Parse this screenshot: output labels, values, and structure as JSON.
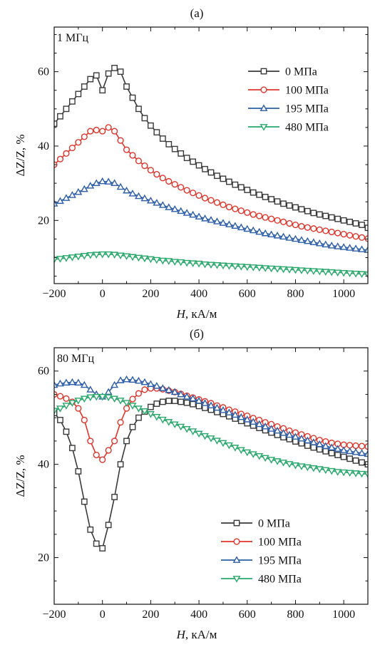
{
  "chart_data": [
    {
      "type": "line",
      "panel_label": "(a)",
      "annotation": "1 МГц",
      "xlabel_italic": "H",
      "xlabel_rest": ", кА/м",
      "ylabel": "ΔZ/Z, %",
      "xlim": [
        -200,
        1100
      ],
      "ylim": [
        3,
        72
      ],
      "xticks": [
        -200,
        0,
        200,
        400,
        600,
        800,
        1000
      ],
      "yticks": [
        20,
        40,
        60
      ],
      "legend_position": "top-right",
      "x_step": 25,
      "series": [
        {
          "name": "0 МПа",
          "color": "#3a3a3a",
          "marker": "square",
          "x": [
            -200,
            -175,
            -150,
            -125,
            -100,
            -75,
            -50,
            -25,
            0,
            25,
            50,
            75,
            100,
            125,
            150,
            175,
            200,
            225,
            250,
            275,
            300,
            325,
            350,
            375,
            400,
            425,
            450,
            475,
            500,
            525,
            550,
            575,
            600,
            625,
            650,
            675,
            700,
            725,
            750,
            775,
            800,
            825,
            850,
            875,
            900,
            925,
            950,
            975,
            1000,
            1025,
            1050,
            1075,
            1100
          ],
          "values": [
            46,
            48,
            50,
            52,
            54,
            56,
            58,
            59,
            55,
            59.5,
            61,
            60,
            56,
            53,
            50,
            47.5,
            45.5,
            43.7,
            42,
            40.5,
            39.2,
            38,
            36.8,
            35.8,
            34.8,
            33.8,
            32.9,
            32,
            31.2,
            30.4,
            29.6,
            28.9,
            28.2,
            27.5,
            26.9,
            26.3,
            25.7,
            25.1,
            24.5,
            24,
            23.5,
            23,
            22.5,
            22,
            21.6,
            21.2,
            20.8,
            20.4,
            20,
            19.6,
            19.2,
            18.8,
            18
          ]
        },
        {
          "name": "100 МПа",
          "color": "#e0342a",
          "marker": "circle",
          "x": [
            -200,
            -175,
            -150,
            -125,
            -100,
            -75,
            -50,
            -25,
            0,
            25,
            50,
            75,
            100,
            125,
            150,
            175,
            200,
            225,
            250,
            275,
            300,
            325,
            350,
            375,
            400,
            425,
            450,
            475,
            500,
            525,
            550,
            575,
            600,
            625,
            650,
            675,
            700,
            725,
            750,
            775,
            800,
            825,
            850,
            875,
            900,
            925,
            950,
            975,
            1000,
            1025,
            1050,
            1075,
            1100
          ],
          "values": [
            35,
            36.5,
            38,
            39.5,
            41,
            42.5,
            44,
            44.3,
            44,
            45,
            44,
            41.5,
            39,
            37.5,
            36,
            34.7,
            33.5,
            32.4,
            31.4,
            30.5,
            29.7,
            28.9,
            28.1,
            27.4,
            26.7,
            26,
            25.4,
            24.8,
            24.2,
            23.6,
            23.1,
            22.6,
            22.1,
            21.6,
            21.2,
            20.8,
            20.4,
            20,
            19.6,
            19.2,
            18.8,
            18.4,
            18.1,
            17.8,
            17.5,
            17.2,
            16.9,
            16.6,
            16.3,
            16,
            15.7,
            15.4,
            15.1
          ]
        },
        {
          "name": "195 МПа",
          "color": "#2d5fa8",
          "marker": "triangle-up",
          "x": [
            -200,
            -175,
            -150,
            -125,
            -100,
            -75,
            -50,
            -25,
            0,
            25,
            50,
            75,
            100,
            125,
            150,
            175,
            200,
            225,
            250,
            275,
            300,
            325,
            350,
            375,
            400,
            425,
            450,
            475,
            500,
            525,
            550,
            575,
            600,
            625,
            650,
            675,
            700,
            725,
            750,
            775,
            800,
            825,
            850,
            875,
            900,
            925,
            950,
            975,
            1000,
            1025,
            1050,
            1075,
            1100
          ],
          "values": [
            24.5,
            25.2,
            26,
            26.8,
            27.6,
            28.4,
            29.3,
            30,
            30.5,
            30.4,
            30,
            29,
            28,
            27.2,
            26.5,
            25.9,
            25.3,
            24.7,
            24.1,
            23.5,
            23,
            22.5,
            22,
            21.5,
            21,
            20.5,
            20.1,
            19.7,
            19.3,
            18.9,
            18.5,
            18.1,
            17.7,
            17.3,
            16.9,
            16.5,
            16.2,
            15.9,
            15.6,
            15.3,
            15,
            14.7,
            14.4,
            14.1,
            13.8,
            13.5,
            13.2,
            13,
            12.8,
            12.6,
            12.4,
            12.2,
            12
          ]
        },
        {
          "name": "480 МПа",
          "color": "#27a86a",
          "marker": "triangle-down",
          "x": [
            -200,
            -175,
            -150,
            -125,
            -100,
            -75,
            -50,
            -25,
            0,
            25,
            50,
            75,
            100,
            125,
            150,
            175,
            200,
            225,
            250,
            275,
            300,
            325,
            350,
            375,
            400,
            425,
            450,
            475,
            500,
            525,
            550,
            575,
            600,
            625,
            650,
            675,
            700,
            725,
            750,
            775,
            800,
            825,
            850,
            875,
            900,
            925,
            950,
            975,
            1000,
            1025,
            1050,
            1075,
            1100
          ],
          "values": [
            9.5,
            9.7,
            9.9,
            10.1,
            10.3,
            10.5,
            10.7,
            10.8,
            10.9,
            10.9,
            10.8,
            10.6,
            10.4,
            10.2,
            10,
            9.8,
            9.6,
            9.4,
            9.2,
            9.1,
            8.9,
            8.8,
            8.6,
            8.5,
            8.4,
            8.2,
            8.1,
            8,
            7.9,
            7.8,
            7.7,
            7.6,
            7.5,
            7.4,
            7.3,
            7.2,
            7.1,
            7,
            6.9,
            6.8,
            6.7,
            6.6,
            6.5,
            6.4,
            6.3,
            6.2,
            6.1,
            6,
            5.9,
            5.8,
            5.7,
            5.6,
            5.5
          ]
        }
      ]
    },
    {
      "type": "line",
      "panel_label": "(б)",
      "annotation": "80 МГц",
      "xlabel_italic": "H",
      "xlabel_rest": ", кА/м",
      "ylabel": "ΔZ/Z, %",
      "xlim": [
        -200,
        1100
      ],
      "ylim": [
        10,
        65
      ],
      "xticks": [
        -200,
        0,
        200,
        400,
        600,
        800,
        1000
      ],
      "yticks": [
        20,
        40,
        60
      ],
      "legend_position": "bottom-right",
      "x_step": 25,
      "series": [
        {
          "name": "0 МПа",
          "color": "#3a3a3a",
          "marker": "square",
          "x": [
            -200,
            -175,
            -150,
            -125,
            -100,
            -75,
            -50,
            -25,
            0,
            25,
            50,
            75,
            100,
            125,
            150,
            175,
            200,
            225,
            250,
            275,
            300,
            325,
            350,
            375,
            400,
            425,
            450,
            475,
            500,
            525,
            550,
            575,
            600,
            625,
            650,
            675,
            700,
            725,
            750,
            775,
            800,
            825,
            850,
            875,
            900,
            925,
            950,
            975,
            1000,
            1025,
            1050,
            1075,
            1100
          ],
          "values": [
            51,
            49.5,
            47,
            43.5,
            38.5,
            32,
            26,
            23,
            22,
            27,
            33,
            40,
            45,
            48,
            50,
            51.3,
            52.3,
            53,
            53.4,
            53.6,
            53.6,
            53.4,
            53.2,
            52.9,
            52.5,
            52.1,
            51.7,
            51.2,
            50.8,
            50.3,
            49.8,
            49.3,
            48.8,
            48.3,
            47.8,
            47.3,
            46.8,
            46.3,
            45.8,
            45.4,
            44.9,
            44.5,
            44,
            43.6,
            43.2,
            42.8,
            42.4,
            42,
            41.6,
            41.2,
            40.8,
            40.4,
            40
          ]
        },
        {
          "name": "100 МПа",
          "color": "#e0342a",
          "marker": "circle",
          "x": [
            -200,
            -175,
            -150,
            -125,
            -100,
            -75,
            -50,
            -25,
            0,
            25,
            50,
            75,
            100,
            125,
            150,
            175,
            200,
            225,
            250,
            275,
            300,
            325,
            350,
            375,
            400,
            425,
            450,
            475,
            500,
            525,
            550,
            575,
            600,
            625,
            650,
            675,
            700,
            725,
            750,
            775,
            800,
            825,
            850,
            875,
            900,
            925,
            950,
            975,
            1000,
            1025,
            1050,
            1075,
            1100
          ],
          "values": [
            55,
            54.6,
            54.1,
            53.4,
            52,
            49.5,
            45,
            42,
            41,
            43,
            45,
            49,
            52,
            54,
            55.2,
            56,
            56.3,
            56.3,
            56.1,
            55.8,
            55.5,
            55.1,
            54.7,
            54.3,
            53.9,
            53.5,
            53.1,
            52.6,
            52.2,
            51.7,
            51.3,
            50.8,
            50.4,
            49.9,
            49.5,
            49,
            48.6,
            48.1,
            47.7,
            47.2,
            46.8,
            46.4,
            46,
            45.6,
            45.2,
            44.9,
            44.6,
            44.4,
            44.2,
            44.1,
            44,
            43.9,
            43.8
          ]
        },
        {
          "name": "195 МПа",
          "color": "#2d5fa8",
          "marker": "triangle-up",
          "x": [
            -200,
            -175,
            -150,
            -125,
            -100,
            -75,
            -50,
            -25,
            0,
            25,
            50,
            75,
            100,
            125,
            150,
            175,
            200,
            225,
            250,
            275,
            300,
            325,
            350,
            375,
            400,
            425,
            450,
            475,
            500,
            525,
            550,
            575,
            600,
            625,
            650,
            675,
            700,
            725,
            750,
            775,
            800,
            825,
            850,
            875,
            900,
            925,
            950,
            975,
            1000,
            1025,
            1050,
            1075,
            1100
          ],
          "values": [
            57,
            57.3,
            57.5,
            57.6,
            57.5,
            57,
            56,
            55,
            54.5,
            55.5,
            57,
            58,
            58.2,
            58.1,
            57.9,
            57.6,
            57.2,
            56.8,
            56.3,
            55.9,
            55.5,
            55,
            54.5,
            54.1,
            53.6,
            53.1,
            52.6,
            52.1,
            51.6,
            51.1,
            50.6,
            50.1,
            49.6,
            49.1,
            48.6,
            48.1,
            47.6,
            47.2,
            46.7,
            46.3,
            45.9,
            45.5,
            45.1,
            44.7,
            44.3,
            43.9,
            43.6,
            43.3,
            43,
            42.8,
            42.6,
            42.4,
            42.2
          ]
        },
        {
          "name": "480 МПа",
          "color": "#27a86a",
          "marker": "triangle-down",
          "x": [
            -200,
            -175,
            -150,
            -125,
            -100,
            -75,
            -50,
            -25,
            0,
            25,
            50,
            75,
            100,
            125,
            150,
            175,
            200,
            225,
            250,
            275,
            300,
            325,
            350,
            375,
            400,
            425,
            450,
            475,
            500,
            525,
            550,
            575,
            600,
            625,
            650,
            675,
            700,
            725,
            750,
            775,
            800,
            825,
            850,
            875,
            900,
            925,
            950,
            975,
            1000,
            1025,
            1050,
            1075,
            1100
          ],
          "values": [
            51.5,
            52,
            52.6,
            53.2,
            53.7,
            54.1,
            54.4,
            54.5,
            54.5,
            54.4,
            54.1,
            53.7,
            53.2,
            52.6,
            52,
            51.4,
            50.8,
            50.2,
            49.6,
            49.1,
            48.6,
            48.1,
            47.6,
            47.1,
            46.6,
            46.1,
            45.6,
            45.1,
            44.6,
            44.1,
            43.6,
            43.1,
            42.6,
            42.2,
            41.8,
            41.4,
            41,
            40.7,
            40.4,
            40.1,
            39.8,
            39.6,
            39.4,
            39.2,
            39,
            38.8,
            38.6,
            38.4,
            38.3,
            38.2,
            38.1,
            38,
            37.9
          ]
        }
      ]
    }
  ]
}
